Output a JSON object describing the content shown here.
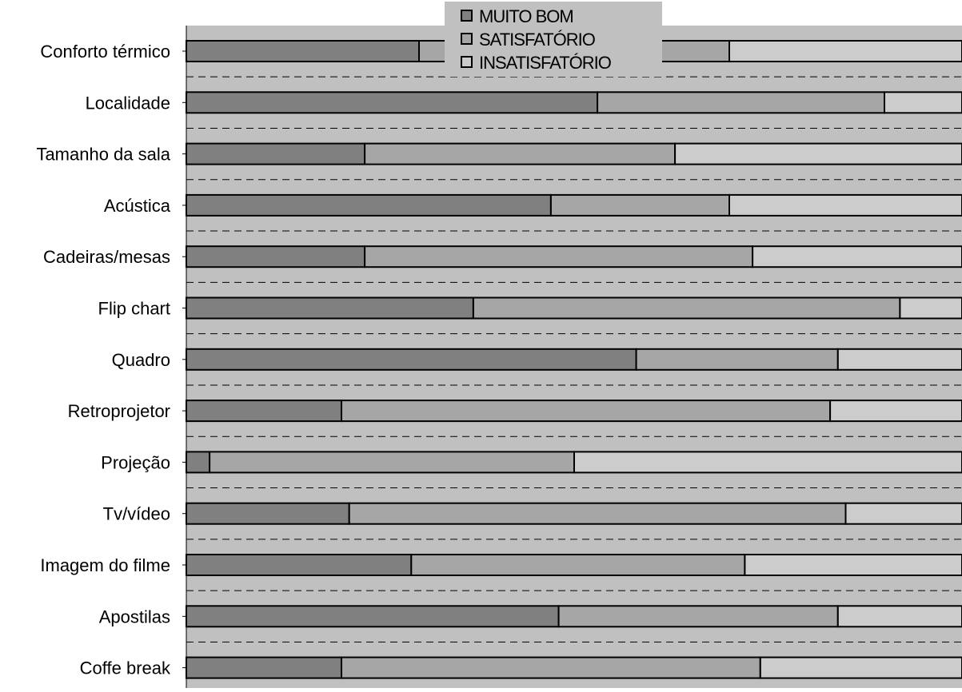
{
  "chart_data": {
    "type": "bar",
    "orientation": "horizontal",
    "stacked": true,
    "percent_stacked": true,
    "categories": [
      "Conforto térmico",
      "Localidade",
      "Tamanho da sala",
      "Acústica",
      "Cadeiras/mesas",
      "Flip chart",
      "Quadro",
      "Retroprojetor",
      "Projeção",
      "Tv/vídeo",
      "Imagem do filme",
      "Apostilas",
      "Coffe break"
    ],
    "series": [
      {
        "name": "MUITO BOM",
        "color": "#808080",
        "values": [
          30,
          53,
          23,
          47,
          23,
          37,
          58,
          20,
          3,
          21,
          29,
          48,
          20
        ]
      },
      {
        "name": "SATISFATÓRIO",
        "color": "#a6a6a6",
        "values": [
          40,
          37,
          40,
          23,
          50,
          55,
          26,
          63,
          47,
          64,
          43,
          36,
          54
        ]
      },
      {
        "name": "INSATISFATÓRIO",
        "color": "#cccccc",
        "values": [
          30,
          10,
          37,
          30,
          27,
          8,
          16,
          17,
          50,
          15,
          28,
          16,
          26
        ]
      }
    ],
    "xlim": [
      0,
      100
    ],
    "grid": "dashed horizontal",
    "legend_position": "top-center",
    "plot_background": "#c0c0c0"
  }
}
